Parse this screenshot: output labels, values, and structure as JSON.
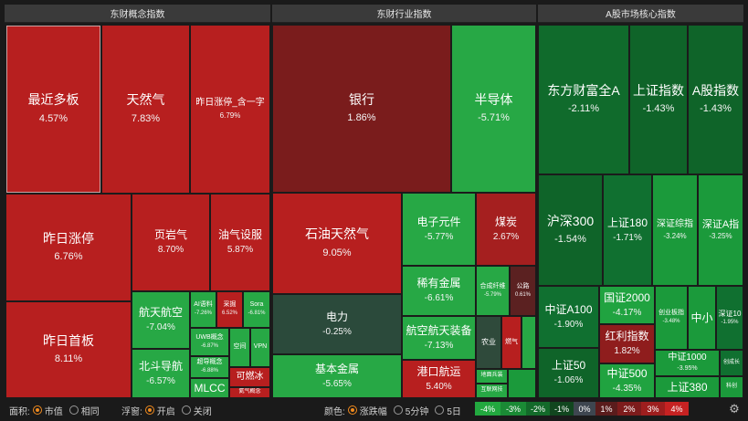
{
  "panels": {
    "concept": "东财概念指数",
    "industry": "东财行业指数",
    "core": "A股市场核心指数"
  },
  "tiles": {
    "zuijin_duoban": {
      "name": "最近多板",
      "pct": "4.57%",
      "color": "#b71f1f"
    },
    "tianranqi": {
      "name": "天然气",
      "pct": "7.83%",
      "color": "#b71f1f"
    },
    "zuori_zt_yizi": {
      "name": "昨日涨停_含一字",
      "pct": "6.79%",
      "color": "#b71f1f"
    },
    "zuori_zhangting": {
      "name": "昨日涨停",
      "pct": "6.76%",
      "color": "#b71f1f"
    },
    "yeyanqi": {
      "name": "页岩气",
      "pct": "8.70%",
      "color": "#b71f1f"
    },
    "youqi_shebei": {
      "name": "油气设服",
      "pct": "5.87%",
      "color": "#b71f1f"
    },
    "zuori_shouban": {
      "name": "昨日首板",
      "pct": "8.11%",
      "color": "#b71f1f"
    },
    "hangtian_hangkong": {
      "name": "航天航空",
      "pct": "-7.04%",
      "color": "#27a845"
    },
    "ai_yuliao": {
      "name": "AI语料",
      "pct": "-7.26%",
      "color": "#27a845"
    },
    "caimei": {
      "name": "采掘",
      "pct": "6.52%",
      "color": "#b71f1f"
    },
    "sora": {
      "name": "Sora",
      "pct": "-6.81%",
      "color": "#27a845"
    },
    "uwb": {
      "name": "UWB概念",
      "pct": "-6.87%",
      "color": "#27a845"
    },
    "kongtian": {
      "name": "空间",
      "pct": "",
      "color": "#27a845"
    },
    "vpn": {
      "name": "VPN",
      "pct": "",
      "color": "#27a845"
    },
    "beidou": {
      "name": "北斗导航",
      "pct": "-6.57%",
      "color": "#27a845"
    },
    "chaogao_dianya": {
      "name": "超导概念",
      "pct": "-6.88%",
      "color": "#27a845"
    },
    "keranbing": {
      "name": "可燃冰",
      "pct": "",
      "color": "#b71f1f"
    },
    "mlcc": {
      "name": "MLCC",
      "pct": "",
      "color": "#27a845"
    },
    "qiqi_gainian": {
      "name": "氦气概念",
      "pct": "",
      "color": "#b71f1f"
    },
    "yinhang": {
      "name": "银行",
      "pct": "1.86%",
      "color": "#7a1c1c"
    },
    "bandaoti": {
      "name": "半导体",
      "pct": "-5.71%",
      "color": "#27a845"
    },
    "shiyou": {
      "name": "石油天然气",
      "pct": "9.05%",
      "color": "#b71f1f"
    },
    "dianzi_yuanjian": {
      "name": "电子元件",
      "pct": "-5.77%",
      "color": "#27a845"
    },
    "meitan": {
      "name": "煤炭",
      "pct": "2.67%",
      "color": "#a51f1f"
    },
    "xiyou_jinshu": {
      "name": "稀有金属",
      "pct": "-6.61%",
      "color": "#27a845"
    },
    "hecheng_xianwei": {
      "name": "合成纤维",
      "pct": "-5.79%",
      "color": "#27a845"
    },
    "gonglu": {
      "name": "公路",
      "pct": "0.61%",
      "color": "#5b2121"
    },
    "dianli": {
      "name": "电力",
      "pct": "-0.25%",
      "color": "#2b4a3b"
    },
    "hangkong_zhuangbei": {
      "name": "航空航天装备",
      "pct": "-7.13%",
      "color": "#27a845"
    },
    "nongye": {
      "name": "农业",
      "pct": "",
      "color": "#2f4a3b"
    },
    "ranqi": {
      "name": "燃气",
      "pct": "",
      "color": "#b71f1f"
    },
    "jiben_jinshu": {
      "name": "基本金属",
      "pct": "-5.65%",
      "color": "#27a845"
    },
    "gangkou": {
      "name": "港口航运",
      "pct": "5.40%",
      "color": "#b71f1f"
    },
    "dimian_bingqi": {
      "name": "地面兵装",
      "pct": "",
      "color": "#27a845"
    },
    "hulian_wangluo": {
      "name": "互联网技",
      "pct": "",
      "color": "#27a845"
    },
    "dongcai_quana": {
      "name": "东方财富全A",
      "pct": "-2.11%",
      "color": "#106b2c"
    },
    "shangzheng": {
      "name": "上证指数",
      "pct": "-1.43%",
      "color": "#0f6429"
    },
    "agu_zhishu": {
      "name": "A股指数",
      "pct": "-1.43%",
      "color": "#0f6429"
    },
    "hushen300": {
      "name": "沪深300",
      "pct": "-1.54%",
      "color": "#0f6429"
    },
    "shangzheng180": {
      "name": "上证180",
      "pct": "-1.71%",
      "color": "#107030"
    },
    "shenzheng_zonghe": {
      "name": "深证综指",
      "pct": "-3.24%",
      "color": "#1b9a3b"
    },
    "shenzheng_azhi": {
      "name": "深证A指",
      "pct": "-3.25%",
      "color": "#1b9a3b"
    },
    "zhongzheng_a100": {
      "name": "中证A100",
      "pct": "-1.90%",
      "color": "#107030"
    },
    "guozheng2000": {
      "name": "国证2000",
      "pct": "-4.17%",
      "color": "#20a340"
    },
    "chuangye_gaoji": {
      "name": "创业板指",
      "pct": "-3.48%",
      "color": "#1b9a3b"
    },
    "zhongxiao": {
      "name": "中小",
      "pct": "",
      "color": "#1b9a3b"
    },
    "shenzheng10": {
      "name": "深证10",
      "pct": "-1.95%",
      "color": "#107030"
    },
    "hongli": {
      "name": "红利指数",
      "pct": "1.82%",
      "color": "#8f1d1d"
    },
    "zhongzheng1000": {
      "name": "中证1000",
      "pct": "-3.95%",
      "color": "#1b9a3b"
    },
    "chuangye_chang": {
      "name": "创成长",
      "pct": "",
      "color": "#107030"
    },
    "shangzheng50": {
      "name": "上证50",
      "pct": "-1.06%",
      "color": "#0f6429"
    },
    "zhongzheng500": {
      "name": "中证500",
      "pct": "-4.35%",
      "color": "#20a340"
    },
    "shangzheng380": {
      "name": "上证380",
      "pct": "",
      "color": "#1b9a3b"
    },
    "kechuang": {
      "name": "科创",
      "pct": "",
      "color": "#1b9a3b"
    }
  },
  "toolbar": {
    "area_label": "面积:",
    "area_opt1": "市值",
    "area_opt2": "相同",
    "float_label": "浮窗:",
    "float_opt1": "开启",
    "float_opt2": "关闭",
    "color_label": "颜色:",
    "color_opt1": "涨跌幅",
    "color_opt2": "5分钟",
    "color_opt3": "5日"
  },
  "legend": [
    {
      "label": "-4%",
      "color": "#22a83f"
    },
    {
      "label": "-3%",
      "color": "#1a8a35"
    },
    {
      "label": "-2%",
      "color": "#136a2a"
    },
    {
      "label": "-1%",
      "color": "#11461f"
    },
    {
      "label": "0%",
      "color": "#3e4650"
    },
    {
      "label": "1%",
      "color": "#5a1c1c"
    },
    {
      "label": "2%",
      "color": "#7d1c1c"
    },
    {
      "label": "3%",
      "color": "#9e1e1e"
    },
    {
      "label": "4%",
      "color": "#c62222"
    }
  ],
  "settings_icon": "gear-icon"
}
